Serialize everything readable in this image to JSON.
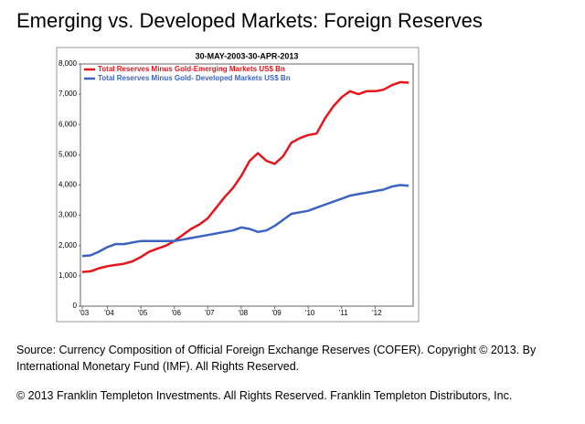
{
  "chart_data": {
    "type": "line",
    "title": "Emerging vs. Developed Markets: Foreign Reserves",
    "subtitle": "30-MAY-2003-30-APR-2013",
    "categories": [
      "'03",
      null,
      null,
      "'04",
      null,
      null,
      null,
      "'05",
      null,
      null,
      null,
      "'06",
      null,
      null,
      null,
      "'07",
      null,
      null,
      null,
      "'08",
      null,
      null,
      null,
      "'09",
      null,
      null,
      null,
      "'10",
      null,
      null,
      null,
      "'11",
      null,
      null,
      null,
      "'12",
      null,
      null,
      null,
      null
    ],
    "series": [
      {
        "name": "Total Reserves Minus Gold-Emerging Markets US$ Bn",
        "color": "#e8141c",
        "values": [
          1130,
          1150,
          1250,
          1320,
          1360,
          1400,
          1480,
          1620,
          1800,
          1900,
          2000,
          2150,
          2350,
          2550,
          2700,
          2900,
          3250,
          3600,
          3900,
          4300,
          4800,
          5050,
          4800,
          4700,
          4950,
          5400,
          5550,
          5650,
          5700,
          6200,
          6600,
          6900,
          7100,
          7000,
          7100,
          7100,
          7150,
          7300,
          7400,
          7380
        ]
      },
      {
        "name": "Total Reserves Minus Gold- Developed Markets US$ Bn",
        "color": "#3a63c4",
        "values": [
          1650,
          1680,
          1800,
          1950,
          2050,
          2050,
          2100,
          2150,
          2150,
          2150,
          2150,
          2150,
          2200,
          2250,
          2300,
          2350,
          2400,
          2450,
          2500,
          2600,
          2550,
          2450,
          2500,
          2650,
          2850,
          3050,
          3100,
          3150,
          3250,
          3350,
          3450,
          3550,
          3650,
          3700,
          3750,
          3800,
          3850,
          3950,
          4000,
          3980
        ]
      }
    ],
    "ylim": [
      0,
      8000
    ],
    "yticks": [
      0,
      {
        "value": 1000,
        "label": "1,000"
      },
      {
        "value": 2000,
        "label": "2,000"
      },
      {
        "value": 3000,
        "label": "3,000"
      },
      {
        "value": 4000,
        "label": "4,000"
      },
      {
        "value": 5000,
        "label": "5,000"
      },
      {
        "value": 6000,
        "label": "6,000"
      },
      {
        "value": 7000,
        "label": "7,000"
      },
      {
        "value": 8000,
        "label": "8,000"
      }
    ],
    "grid": false
  },
  "notes": {
    "source": "Source: Currency Composition of Official Foreign Exchange Reserves (COFER). Copyright © 2013. By International Monetary Fund (IMF).  All Rights Reserved.",
    "copyright": "© 2013 Franklin Templeton Investments. All Rights Reserved. Franklin Templeton Distributors, Inc."
  }
}
